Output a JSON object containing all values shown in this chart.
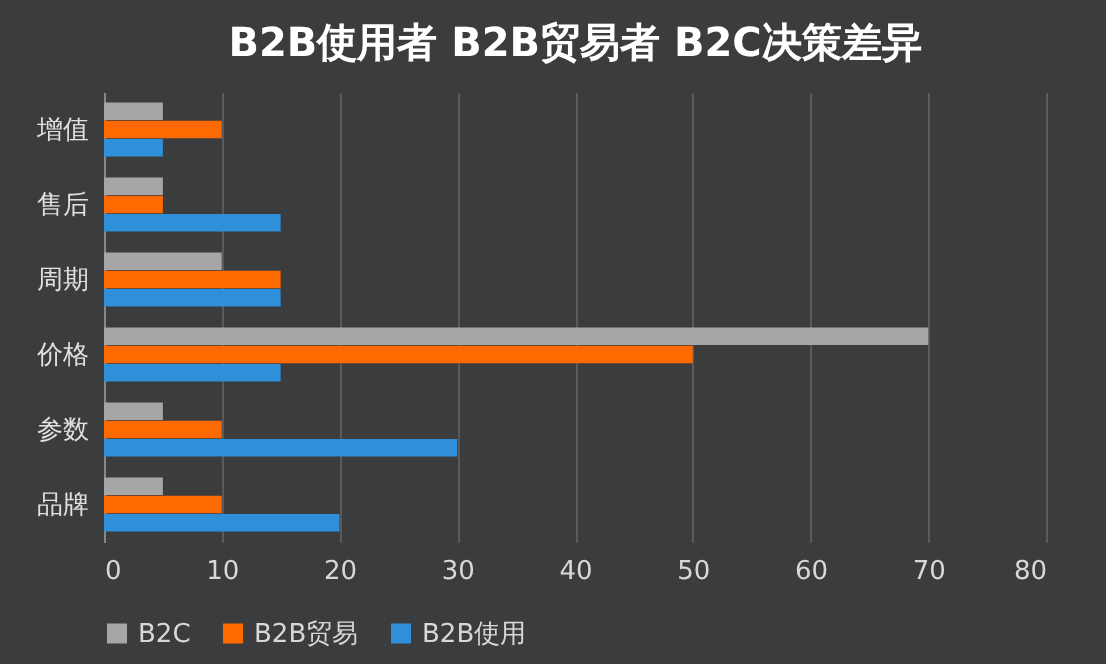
{
  "chart_data": {
    "type": "bar",
    "orientation": "horizontal",
    "title": "B2B使用者 B2B贸易者 B2C决策差异",
    "categories": [
      "增值",
      "售后",
      "周期",
      "价格",
      "参数",
      "品牌"
    ],
    "series": [
      {
        "name": "B2C",
        "color": "#a6a6a6",
        "values": [
          5,
          5,
          10,
          70,
          5,
          5
        ]
      },
      {
        "name": "B2B贸易",
        "color": "#ff6a00",
        "values": [
          10,
          5,
          15,
          50,
          10,
          10
        ]
      },
      {
        "name": "B2B使用",
        "color": "#2f8fd8",
        "values": [
          5,
          15,
          15,
          15,
          30,
          20
        ]
      }
    ],
    "xlim": [
      0,
      80
    ],
    "xticks": [
      0,
      10,
      20,
      30,
      40,
      50,
      60,
      70,
      80
    ],
    "grid": "x",
    "legend": "bottom"
  }
}
